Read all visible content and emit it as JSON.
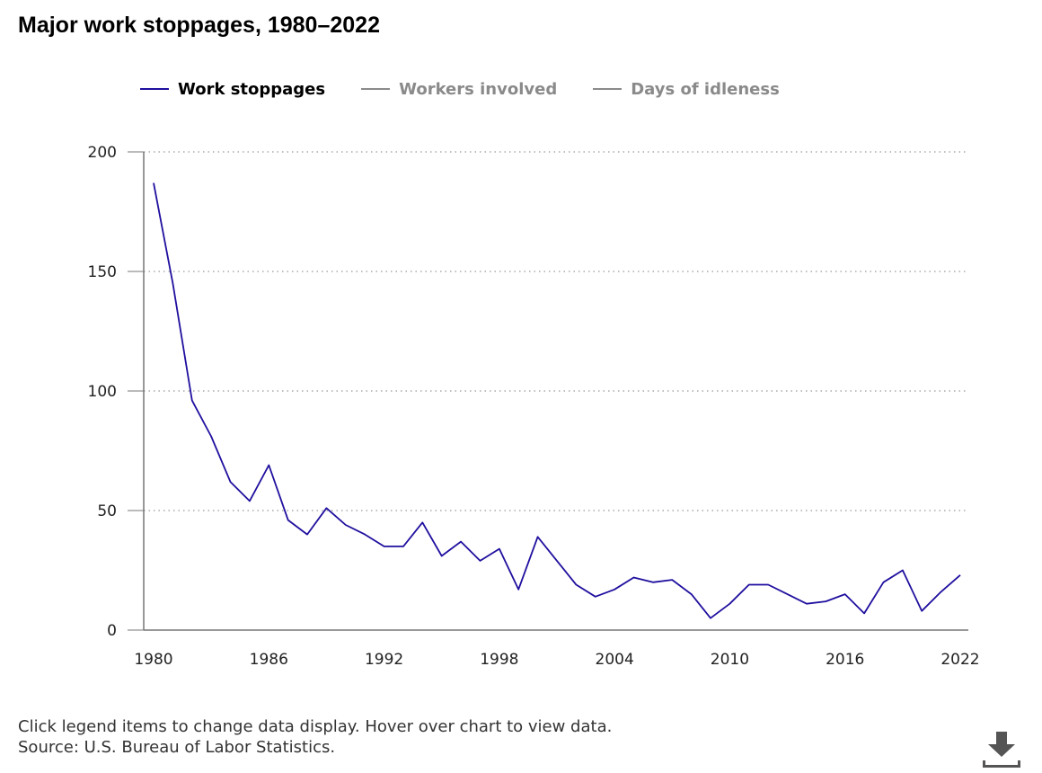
{
  "page": {
    "title": "Major work stoppages, 1980–2022",
    "footnote_line1": "Click legend items to change data display. Hover over chart to view data.",
    "footnote_line2": "Source: U.S. Bureau of Labor Statistics."
  },
  "legend": {
    "items": [
      {
        "label": "Work stoppages",
        "active": true,
        "color": "#1f0f9e"
      },
      {
        "label": "Workers involved",
        "active": false,
        "color": "#8a8a8a"
      },
      {
        "label": "Days of idleness",
        "active": false,
        "color": "#8a8a8a"
      }
    ]
  },
  "download": {
    "icon": "download-icon",
    "color": "#555555"
  },
  "chart_data": {
    "type": "line",
    "title": "Major work stoppages, 1980–2022",
    "xlabel": "",
    "ylabel": "",
    "ylim": [
      0,
      200
    ],
    "xlim": [
      1980,
      2022
    ],
    "yticks": [
      0,
      50,
      100,
      150,
      200
    ],
    "xticks": [
      1980,
      1986,
      1992,
      1998,
      2004,
      2010,
      2016,
      2022
    ],
    "grid": "horizontal dotted",
    "legend_position": "top",
    "series": [
      {
        "name": "Work stoppages",
        "color": "#1f0f9e",
        "x": [
          1980,
          1981,
          1982,
          1983,
          1984,
          1985,
          1986,
          1987,
          1988,
          1989,
          1990,
          1991,
          1992,
          1993,
          1994,
          1995,
          1996,
          1997,
          1998,
          1999,
          2000,
          2001,
          2002,
          2003,
          2004,
          2005,
          2006,
          2007,
          2008,
          2009,
          2010,
          2011,
          2012,
          2013,
          2014,
          2015,
          2016,
          2017,
          2018,
          2019,
          2020,
          2021,
          2022
        ],
        "values": [
          187,
          145,
          96,
          81,
          62,
          54,
          69,
          46,
          40,
          51,
          44,
          40,
          35,
          35,
          45,
          31,
          37,
          29,
          34,
          17,
          39,
          29,
          19,
          14,
          17,
          22,
          20,
          21,
          15,
          5,
          11,
          19,
          19,
          15,
          11,
          12,
          15,
          7,
          20,
          25,
          8,
          16,
          23
        ]
      }
    ]
  }
}
